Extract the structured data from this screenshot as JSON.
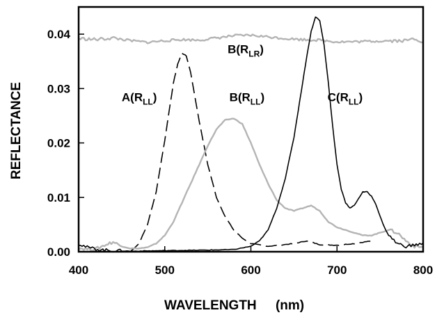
{
  "chart_data": {
    "type": "line",
    "xlabel": "WAVELENGTH",
    "xunit": "(nm)",
    "ylabel": "REFLECTANCE",
    "xlim": [
      400,
      800
    ],
    "ylim": [
      0,
      0.045
    ],
    "grid": false,
    "x_ticks": [
      {
        "value": 400,
        "label": "400"
      },
      {
        "value": 500,
        "label": "500"
      },
      {
        "value": 600,
        "label": "600"
      },
      {
        "value": 700,
        "label": "700"
      },
      {
        "value": 800,
        "label": "800"
      }
    ],
    "y_ticks": [
      {
        "value": 0,
        "label": "0.00"
      },
      {
        "value": 0.01,
        "label": "0.01"
      },
      {
        "value": 0.02,
        "label": "0.02"
      },
      {
        "value": 0.03,
        "label": "0.03"
      },
      {
        "value": 0.04,
        "label": "0.04"
      }
    ],
    "annotations": [
      {
        "main": "A(R",
        "sub": "LL",
        "close": ")",
        "x": 450,
        "y": 0.0277,
        "series": "A(RLL)"
      },
      {
        "main": "B(R",
        "sub": "LR",
        "close": ")",
        "x": 573,
        "y": 0.0365,
        "series": "B(RLR)"
      },
      {
        "main": "B(R",
        "sub": "LL",
        "close": ")",
        "x": 575,
        "y": 0.0277,
        "series": "B(RLL)"
      },
      {
        "main": "C(R",
        "sub": "LL",
        "close": ")",
        "x": 689,
        "y": 0.0277,
        "series": "C(RLL)"
      }
    ],
    "series": [
      {
        "key": "A(RLL)",
        "color": "#000000",
        "dash": "16,7",
        "width": 1.6,
        "points": [
          [
            460,
            0.0
          ],
          [
            470,
            0.0015
          ],
          [
            480,
            0.005
          ],
          [
            490,
            0.011
          ],
          [
            500,
            0.0205
          ],
          [
            510,
            0.031
          ],
          [
            515,
            0.0345
          ],
          [
            520,
            0.0365
          ],
          [
            525,
            0.036
          ],
          [
            530,
            0.033
          ],
          [
            540,
            0.024
          ],
          [
            550,
            0.016
          ],
          [
            560,
            0.01
          ],
          [
            570,
            0.0065
          ],
          [
            580,
            0.004
          ],
          [
            590,
            0.0025
          ],
          [
            600,
            0.0015
          ],
          [
            620,
            0.001
          ],
          [
            650,
            0.0015
          ],
          [
            665,
            0.002
          ],
          [
            680,
            0.0013
          ],
          [
            700,
            0.0012
          ],
          [
            720,
            0.0015
          ],
          [
            740,
            0.002
          ]
        ]
      },
      {
        "key": "B(RLL)",
        "color": "#b4b4b4",
        "dash": "",
        "width": 2.4,
        "points": [
          [
            400,
            0.0007
          ],
          [
            410,
            0.0005
          ],
          [
            420,
            0.0005
          ],
          [
            430,
            0.0012
          ],
          [
            440,
            0.0018
          ],
          [
            450,
            0.001
          ],
          [
            460,
            0.0006
          ],
          [
            470,
            0.0006
          ],
          [
            480,
            0.0008
          ],
          [
            490,
            0.0015
          ],
          [
            500,
            0.003
          ],
          [
            510,
            0.0055
          ],
          [
            520,
            0.009
          ],
          [
            530,
            0.0125
          ],
          [
            540,
            0.016
          ],
          [
            550,
            0.0195
          ],
          [
            560,
            0.0225
          ],
          [
            570,
            0.0242
          ],
          [
            580,
            0.0245
          ],
          [
            590,
            0.0235
          ],
          [
            600,
            0.02
          ],
          [
            610,
            0.016
          ],
          [
            620,
            0.0125
          ],
          [
            630,
            0.0095
          ],
          [
            640,
            0.008
          ],
          [
            650,
            0.0075
          ],
          [
            660,
            0.008
          ],
          [
            670,
            0.0085
          ],
          [
            680,
            0.0075
          ],
          [
            690,
            0.0055
          ],
          [
            700,
            0.0045
          ],
          [
            710,
            0.004
          ],
          [
            720,
            0.0035
          ],
          [
            730,
            0.003
          ],
          [
            740,
            0.003
          ],
          [
            750,
            0.0035
          ],
          [
            760,
            0.004
          ],
          [
            770,
            0.0035
          ],
          [
            780,
            0.002
          ],
          [
            790,
            0.001
          ],
          [
            800,
            0.0008
          ]
        ]
      },
      {
        "key": "B(RLR)",
        "color": "#b4b4b4",
        "dash": "",
        "width": 2.4,
        "points": [
          [
            400,
            0.0392
          ],
          [
            420,
            0.039
          ],
          [
            440,
            0.0393
          ],
          [
            460,
            0.0388
          ],
          [
            480,
            0.0385
          ],
          [
            500,
            0.0388
          ],
          [
            520,
            0.039
          ],
          [
            540,
            0.0389
          ],
          [
            560,
            0.0393
          ],
          [
            580,
            0.0397
          ],
          [
            600,
            0.0398
          ],
          [
            620,
            0.0395
          ],
          [
            640,
            0.0392
          ],
          [
            660,
            0.039
          ],
          [
            680,
            0.0389
          ],
          [
            700,
            0.0386
          ],
          [
            720,
            0.0386
          ],
          [
            740,
            0.0387
          ],
          [
            760,
            0.0388
          ],
          [
            780,
            0.0388
          ],
          [
            790,
            0.0392
          ],
          [
            800,
            0.0386
          ]
        ]
      },
      {
        "key": "C(RLL)",
        "color": "#000000",
        "dash": "",
        "width": 1.6,
        "points": [
          [
            400,
            0.0015
          ],
          [
            410,
            0.0008
          ],
          [
            420,
            0.0005
          ],
          [
            430,
            0.0003
          ],
          [
            440,
            0.0002
          ],
          [
            460,
            0.0001
          ],
          [
            500,
            0.0002
          ],
          [
            550,
            0.0003
          ],
          [
            580,
            0.0004
          ],
          [
            600,
            0.001
          ],
          [
            610,
            0.002
          ],
          [
            620,
            0.004
          ],
          [
            630,
            0.008
          ],
          [
            640,
            0.0135
          ],
          [
            650,
            0.021
          ],
          [
            655,
            0.026
          ],
          [
            660,
            0.031
          ],
          [
            665,
            0.036
          ],
          [
            670,
            0.0405
          ],
          [
            675,
            0.0432
          ],
          [
            680,
            0.0425
          ],
          [
            685,
            0.038
          ],
          [
            690,
            0.031
          ],
          [
            695,
            0.023
          ],
          [
            700,
            0.016
          ],
          [
            705,
            0.0115
          ],
          [
            710,
            0.009
          ],
          [
            715,
            0.008
          ],
          [
            720,
            0.0085
          ],
          [
            725,
            0.0098
          ],
          [
            730,
            0.011
          ],
          [
            735,
            0.011
          ],
          [
            740,
            0.0102
          ],
          [
            745,
            0.0088
          ],
          [
            750,
            0.0065
          ],
          [
            755,
            0.0045
          ],
          [
            760,
            0.003
          ],
          [
            770,
            0.0015
          ],
          [
            780,
            0.001
          ],
          [
            790,
            0.0012
          ],
          [
            800,
            0.0016
          ]
        ]
      }
    ]
  }
}
